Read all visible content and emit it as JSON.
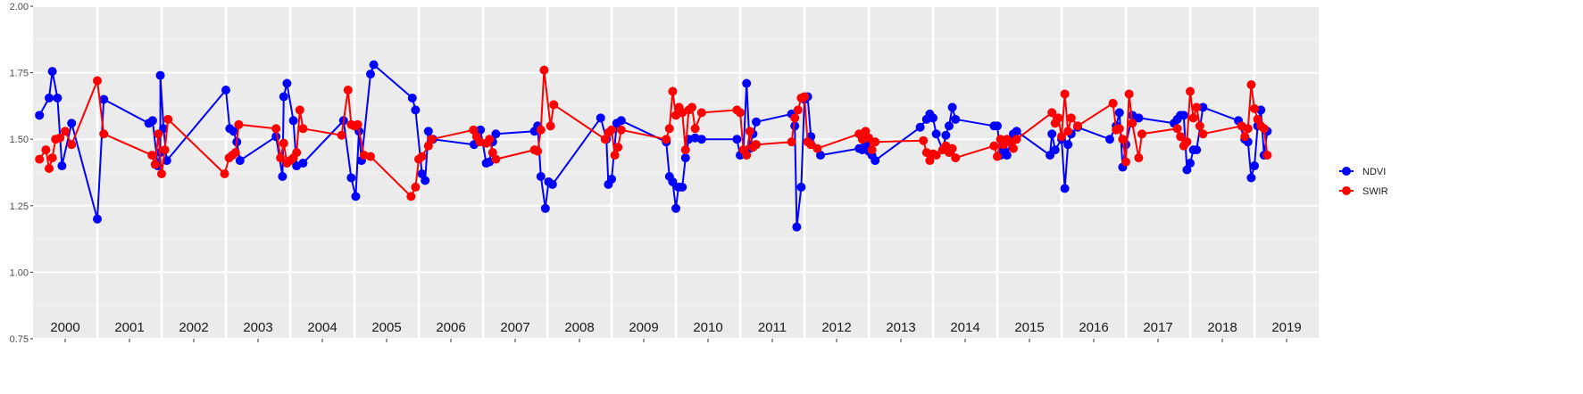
{
  "chart_data": {
    "type": "line",
    "title": "",
    "xlabel": "",
    "ylabel": "",
    "ylim": [
      0.75,
      2.0
    ],
    "xlim": [
      2000.0,
      2020.0
    ],
    "y_ticks": [
      "0.75",
      "1.00",
      "1.25",
      "1.50",
      "1.75",
      "2.00"
    ],
    "y_tick_values": [
      0.75,
      1.0,
      1.25,
      1.5,
      1.75,
      2.0
    ],
    "x_ticks": [
      "2000",
      "2001",
      "2002",
      "2003",
      "2004",
      "2005",
      "2006",
      "2007",
      "2008",
      "2009",
      "2010",
      "2011",
      "2012",
      "2013",
      "2014",
      "2015",
      "2016",
      "2017",
      "2018",
      "2019"
    ],
    "grid": true,
    "background": "#ebebeb",
    "legend": {
      "placement": "right"
    },
    "series": [
      {
        "name": "NDVI",
        "color": "#0000ff",
        "points": [
          [
            2000.1,
            1.59
          ],
          [
            2000.25,
            1.655
          ],
          [
            2000.3,
            1.755
          ],
          [
            2000.38,
            1.655
          ],
          [
            2000.45,
            1.4
          ],
          [
            2000.6,
            1.56
          ],
          [
            2001.0,
            1.2
          ],
          [
            2001.1,
            1.65
          ],
          [
            2001.8,
            1.56
          ],
          [
            2001.86,
            1.57
          ],
          [
            2001.94,
            1.4
          ],
          [
            2001.98,
            1.45
          ],
          [
            2001.98,
            1.74
          ],
          [
            2002.03,
            1.54
          ],
          [
            2002.08,
            1.42
          ],
          [
            2003.0,
            1.685
          ],
          [
            2003.06,
            1.54
          ],
          [
            2003.12,
            1.53
          ],
          [
            2003.17,
            1.49
          ],
          [
            2003.22,
            1.42
          ],
          [
            2003.78,
            1.51
          ],
          [
            2003.88,
            1.36
          ],
          [
            2003.9,
            1.66
          ],
          [
            2003.95,
            1.71
          ],
          [
            2004.05,
            1.57
          ],
          [
            2004.1,
            1.4
          ],
          [
            2004.2,
            1.41
          ],
          [
            2004.83,
            1.57
          ],
          [
            2004.95,
            1.355
          ],
          [
            2005.02,
            1.285
          ],
          [
            2005.07,
            1.53
          ],
          [
            2005.11,
            1.42
          ],
          [
            2005.25,
            1.745
          ],
          [
            2005.3,
            1.78
          ],
          [
            2005.9,
            1.655
          ],
          [
            2005.95,
            1.61
          ],
          [
            2006.05,
            1.37
          ],
          [
            2006.1,
            1.345
          ],
          [
            2006.15,
            1.53
          ],
          [
            2006.22,
            1.5
          ],
          [
            2006.86,
            1.48
          ],
          [
            2006.92,
            1.53
          ],
          [
            2006.96,
            1.535
          ],
          [
            2007.05,
            1.41
          ],
          [
            2007.1,
            1.415
          ],
          [
            2007.15,
            1.49
          ],
          [
            2007.2,
            1.52
          ],
          [
            2007.8,
            1.53
          ],
          [
            2007.85,
            1.55
          ],
          [
            2007.9,
            1.36
          ],
          [
            2007.97,
            1.24
          ],
          [
            2008.02,
            1.34
          ],
          [
            2008.08,
            1.33
          ],
          [
            2008.83,
            1.58
          ],
          [
            2008.92,
            1.5
          ],
          [
            2008.95,
            1.33
          ],
          [
            2009.0,
            1.35
          ],
          [
            2009.08,
            1.56
          ],
          [
            2009.15,
            1.57
          ],
          [
            2009.85,
            1.49
          ],
          [
            2009.9,
            1.36
          ],
          [
            2009.95,
            1.34
          ],
          [
            2010.0,
            1.24
          ],
          [
            2010.04,
            1.32
          ],
          [
            2010.1,
            1.32
          ],
          [
            2010.15,
            1.43
          ],
          [
            2010.2,
            1.5
          ],
          [
            2010.3,
            1.505
          ],
          [
            2010.4,
            1.5
          ],
          [
            2010.95,
            1.5
          ],
          [
            2011.0,
            1.44
          ],
          [
            2011.05,
            1.45
          ],
          [
            2011.1,
            1.71
          ],
          [
            2011.15,
            1.465
          ],
          [
            2011.2,
            1.52
          ],
          [
            2011.25,
            1.565
          ],
          [
            2011.8,
            1.595
          ],
          [
            2011.85,
            1.55
          ],
          [
            2011.88,
            1.17
          ],
          [
            2011.95,
            1.32
          ],
          [
            2012.0,
            1.65
          ],
          [
            2012.05,
            1.66
          ],
          [
            2012.1,
            1.51
          ],
          [
            2012.25,
            1.44
          ],
          [
            2012.85,
            1.465
          ],
          [
            2012.9,
            1.46
          ],
          [
            2012.95,
            1.48
          ],
          [
            2013.0,
            1.455
          ],
          [
            2013.05,
            1.44
          ],
          [
            2013.1,
            1.42
          ],
          [
            2013.8,
            1.545
          ],
          [
            2013.9,
            1.575
          ],
          [
            2013.95,
            1.595
          ],
          [
            2014.0,
            1.58
          ],
          [
            2014.05,
            1.52
          ],
          [
            2014.15,
            1.46
          ],
          [
            2014.2,
            1.515
          ],
          [
            2014.25,
            1.55
          ],
          [
            2014.3,
            1.62
          ],
          [
            2014.35,
            1.575
          ],
          [
            2014.95,
            1.55
          ],
          [
            2015.0,
            1.55
          ],
          [
            2015.05,
            1.44
          ],
          [
            2015.1,
            1.46
          ],
          [
            2015.15,
            1.44
          ],
          [
            2015.25,
            1.52
          ],
          [
            2015.3,
            1.53
          ],
          [
            2015.82,
            1.44
          ],
          [
            2015.85,
            1.52
          ],
          [
            2015.9,
            1.46
          ],
          [
            2016.0,
            1.5
          ],
          [
            2016.05,
            1.315
          ],
          [
            2016.1,
            1.48
          ],
          [
            2016.15,
            1.52
          ],
          [
            2016.25,
            1.545
          ],
          [
            2016.75,
            1.5
          ],
          [
            2016.85,
            1.55
          ],
          [
            2016.9,
            1.6
          ],
          [
            2016.95,
            1.395
          ],
          [
            2017.0,
            1.48
          ],
          [
            2017.1,
            1.59
          ],
          [
            2017.2,
            1.58
          ],
          [
            2017.75,
            1.56
          ],
          [
            2017.8,
            1.575
          ],
          [
            2017.85,
            1.59
          ],
          [
            2017.9,
            1.59
          ],
          [
            2017.95,
            1.385
          ],
          [
            2018.0,
            1.41
          ],
          [
            2018.05,
            1.46
          ],
          [
            2018.1,
            1.46
          ],
          [
            2018.2,
            1.62
          ],
          [
            2018.75,
            1.57
          ],
          [
            2018.85,
            1.5
          ],
          [
            2018.9,
            1.49
          ],
          [
            2018.95,
            1.355
          ],
          [
            2019.0,
            1.4
          ],
          [
            2019.05,
            1.55
          ],
          [
            2019.1,
            1.61
          ],
          [
            2019.15,
            1.44
          ],
          [
            2019.2,
            1.53
          ]
        ]
      },
      {
        "name": "SWIR",
        "color": "#ff0000",
        "points": [
          [
            2000.1,
            1.425
          ],
          [
            2000.2,
            1.46
          ],
          [
            2000.25,
            1.39
          ],
          [
            2000.3,
            1.43
          ],
          [
            2000.35,
            1.5
          ],
          [
            2000.42,
            1.505
          ],
          [
            2000.5,
            1.53
          ],
          [
            2000.6,
            1.48
          ],
          [
            2001.0,
            1.72
          ],
          [
            2001.1,
            1.52
          ],
          [
            2001.85,
            1.44
          ],
          [
            2001.9,
            1.405
          ],
          [
            2001.95,
            1.52
          ],
          [
            2002.0,
            1.37
          ],
          [
            2002.05,
            1.46
          ],
          [
            2002.1,
            1.575
          ],
          [
            2002.98,
            1.37
          ],
          [
            2003.05,
            1.43
          ],
          [
            2003.1,
            1.44
          ],
          [
            2003.15,
            1.45
          ],
          [
            2003.2,
            1.555
          ],
          [
            2003.78,
            1.54
          ],
          [
            2003.85,
            1.43
          ],
          [
            2003.9,
            1.485
          ],
          [
            2003.95,
            1.41
          ],
          [
            2004.0,
            1.42
          ],
          [
            2004.05,
            1.43
          ],
          [
            2004.1,
            1.45
          ],
          [
            2004.15,
            1.61
          ],
          [
            2004.2,
            1.54
          ],
          [
            2004.8,
            1.515
          ],
          [
            2004.9,
            1.685
          ],
          [
            2004.95,
            1.555
          ],
          [
            2005.0,
            1.55
          ],
          [
            2005.05,
            1.555
          ],
          [
            2005.15,
            1.44
          ],
          [
            2005.25,
            1.435
          ],
          [
            2005.88,
            1.285
          ],
          [
            2005.95,
            1.32
          ],
          [
            2006.0,
            1.425
          ],
          [
            2006.05,
            1.435
          ],
          [
            2006.15,
            1.475
          ],
          [
            2006.2,
            1.5
          ],
          [
            2006.85,
            1.535
          ],
          [
            2006.9,
            1.51
          ],
          [
            2006.95,
            1.49
          ],
          [
            2007.05,
            1.485
          ],
          [
            2007.1,
            1.5
          ],
          [
            2007.15,
            1.45
          ],
          [
            2007.2,
            1.425
          ],
          [
            2007.8,
            1.46
          ],
          [
            2007.85,
            1.455
          ],
          [
            2007.9,
            1.535
          ],
          [
            2007.95,
            1.76
          ],
          [
            2008.05,
            1.55
          ],
          [
            2008.1,
            1.63
          ],
          [
            2008.9,
            1.5
          ],
          [
            2008.95,
            1.525
          ],
          [
            2009.0,
            1.535
          ],
          [
            2009.05,
            1.44
          ],
          [
            2009.1,
            1.47
          ],
          [
            2009.15,
            1.535
          ],
          [
            2009.85,
            1.5
          ],
          [
            2009.9,
            1.54
          ],
          [
            2009.95,
            1.68
          ],
          [
            2010.0,
            1.59
          ],
          [
            2010.05,
            1.62
          ],
          [
            2010.1,
            1.6
          ],
          [
            2010.15,
            1.46
          ],
          [
            2010.2,
            1.61
          ],
          [
            2010.25,
            1.62
          ],
          [
            2010.3,
            1.54
          ],
          [
            2010.4,
            1.6
          ],
          [
            2010.95,
            1.61
          ],
          [
            2011.0,
            1.6
          ],
          [
            2011.05,
            1.46
          ],
          [
            2011.1,
            1.44
          ],
          [
            2011.15,
            1.53
          ],
          [
            2011.2,
            1.47
          ],
          [
            2011.25,
            1.48
          ],
          [
            2011.8,
            1.49
          ],
          [
            2011.85,
            1.58
          ],
          [
            2011.9,
            1.61
          ],
          [
            2011.95,
            1.655
          ],
          [
            2012.0,
            1.66
          ],
          [
            2012.05,
            1.49
          ],
          [
            2012.1,
            1.48
          ],
          [
            2012.2,
            1.465
          ],
          [
            2012.85,
            1.52
          ],
          [
            2012.9,
            1.5
          ],
          [
            2012.95,
            1.53
          ],
          [
            2013.0,
            1.505
          ],
          [
            2013.05,
            1.46
          ],
          [
            2013.1,
            1.49
          ],
          [
            2013.85,
            1.495
          ],
          [
            2013.9,
            1.45
          ],
          [
            2013.95,
            1.42
          ],
          [
            2014.0,
            1.445
          ],
          [
            2014.05,
            1.44
          ],
          [
            2014.15,
            1.46
          ],
          [
            2014.2,
            1.475
          ],
          [
            2014.25,
            1.45
          ],
          [
            2014.3,
            1.465
          ],
          [
            2014.35,
            1.43
          ],
          [
            2014.95,
            1.475
          ],
          [
            2015.0,
            1.435
          ],
          [
            2015.05,
            1.5
          ],
          [
            2015.1,
            1.48
          ],
          [
            2015.15,
            1.5
          ],
          [
            2015.2,
            1.49
          ],
          [
            2015.25,
            1.465
          ],
          [
            2015.3,
            1.5
          ],
          [
            2015.85,
            1.6
          ],
          [
            2015.9,
            1.56
          ],
          [
            2015.95,
            1.58
          ],
          [
            2016.0,
            1.51
          ],
          [
            2016.05,
            1.67
          ],
          [
            2016.1,
            1.53
          ],
          [
            2016.15,
            1.58
          ],
          [
            2016.25,
            1.55
          ],
          [
            2016.8,
            1.635
          ],
          [
            2016.85,
            1.535
          ],
          [
            2016.9,
            1.54
          ],
          [
            2016.95,
            1.5
          ],
          [
            2017.0,
            1.415
          ],
          [
            2017.05,
            1.67
          ],
          [
            2017.1,
            1.56
          ],
          [
            2017.2,
            1.43
          ],
          [
            2017.25,
            1.52
          ],
          [
            2017.8,
            1.54
          ],
          [
            2017.85,
            1.51
          ],
          [
            2017.9,
            1.475
          ],
          [
            2017.95,
            1.49
          ],
          [
            2018.0,
            1.68
          ],
          [
            2018.05,
            1.58
          ],
          [
            2018.1,
            1.62
          ],
          [
            2018.15,
            1.55
          ],
          [
            2018.2,
            1.52
          ],
          [
            2018.8,
            1.55
          ],
          [
            2018.85,
            1.51
          ],
          [
            2018.9,
            1.54
          ],
          [
            2018.95,
            1.705
          ],
          [
            2019.0,
            1.615
          ],
          [
            2019.05,
            1.575
          ],
          [
            2019.1,
            1.55
          ],
          [
            2019.15,
            1.54
          ],
          [
            2019.2,
            1.44
          ]
        ]
      }
    ]
  }
}
